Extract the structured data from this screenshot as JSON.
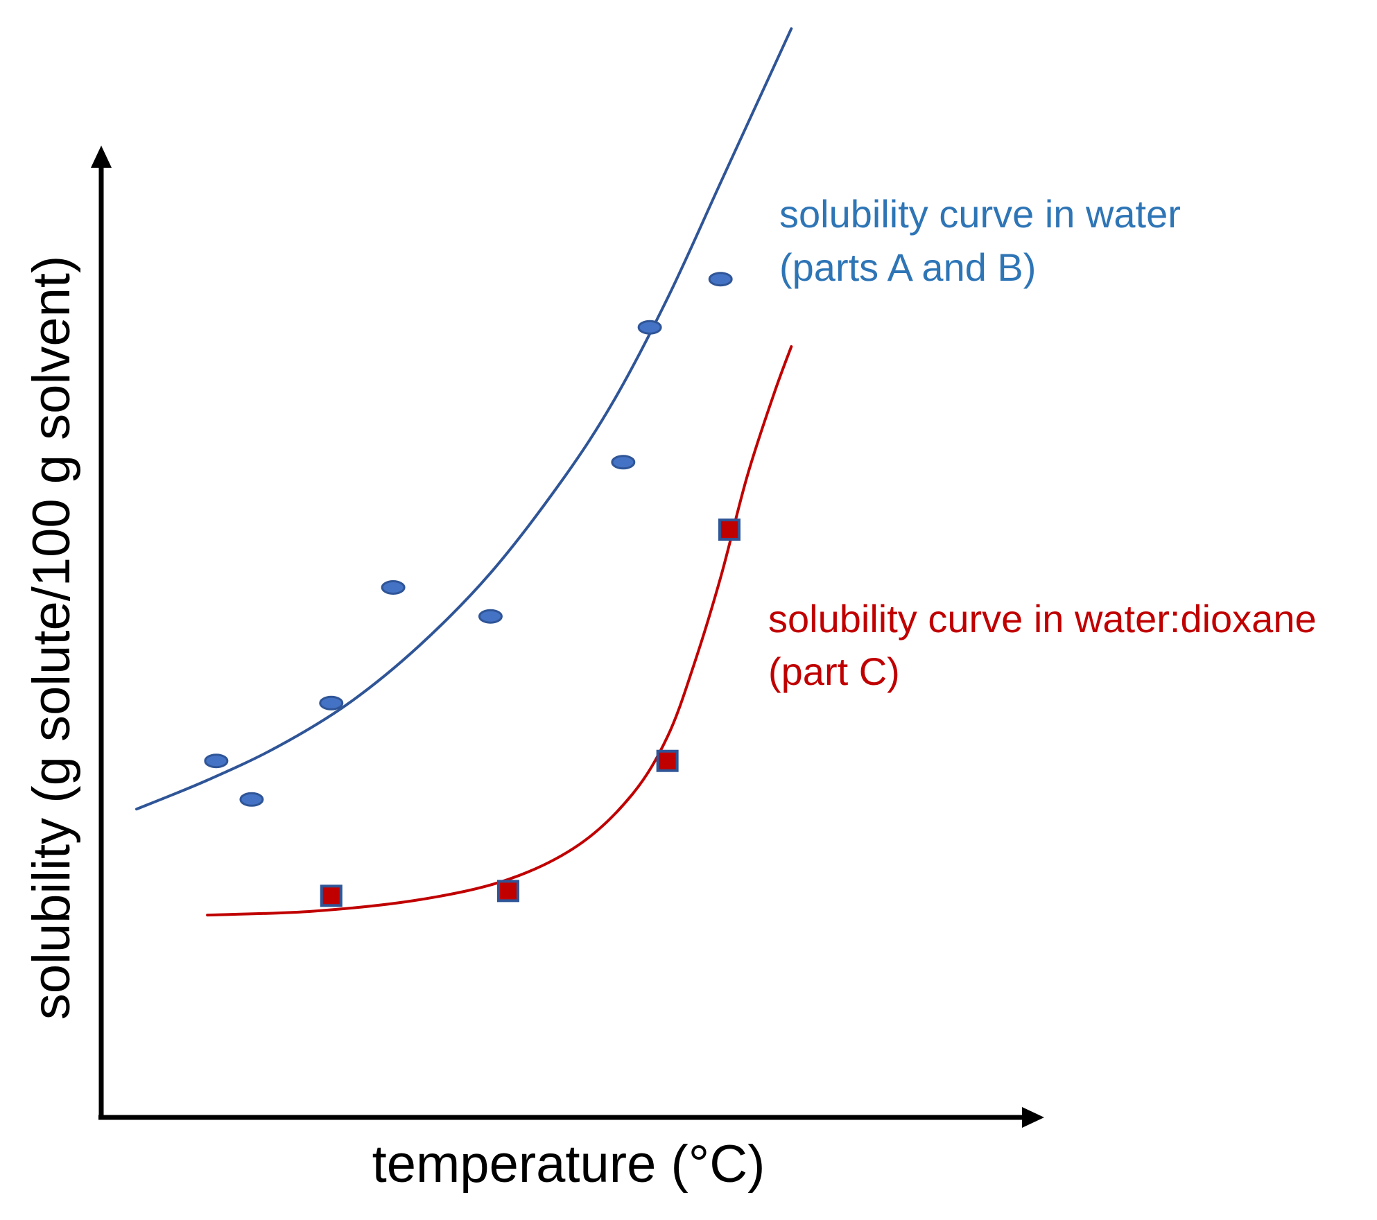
{
  "chart_data": {
    "type": "scatter",
    "title": "",
    "xlabel": "temperature (°C)",
    "ylabel": "solubility (g solute/100 g solvent)",
    "xlim": [
      0,
      100
    ],
    "ylim": [
      0,
      100
    ],
    "grid": false,
    "ticks": "none",
    "series": [
      {
        "name": "water",
        "label_lines": [
          "solubility curve in water",
          "(parts A and B)"
        ],
        "color": "#2F5597",
        "marker": "ellipse",
        "marker_fill": "#4472C4",
        "points": [
          {
            "x": 13,
            "y": 37
          },
          {
            "x": 17,
            "y": 33
          },
          {
            "x": 26,
            "y": 43
          },
          {
            "x": 33,
            "y": 55
          },
          {
            "x": 44,
            "y": 52
          },
          {
            "x": 59,
            "y": 68
          },
          {
            "x": 62,
            "y": 82
          },
          {
            "x": 70,
            "y": 87
          }
        ],
        "curve": [
          {
            "x": 4,
            "y": 32
          },
          {
            "x": 12,
            "y": 35
          },
          {
            "x": 20,
            "y": 38.5
          },
          {
            "x": 28,
            "y": 43
          },
          {
            "x": 36,
            "y": 49
          },
          {
            "x": 44,
            "y": 56.5
          },
          {
            "x": 52,
            "y": 66
          },
          {
            "x": 58,
            "y": 74.5
          },
          {
            "x": 64,
            "y": 85
          },
          {
            "x": 70,
            "y": 97
          },
          {
            "x": 76,
            "y": 109
          },
          {
            "x": 78,
            "y": 113
          }
        ]
      },
      {
        "name": "water:dioxane",
        "label_lines": [
          "solubility curve in water:dioxane",
          "(part C)"
        ],
        "color": "#C00000",
        "marker": "square",
        "marker_fill": "#C00000",
        "marker_edge": "#2F5597",
        "points": [
          {
            "x": 26,
            "y": 23
          },
          {
            "x": 46,
            "y": 23.5
          },
          {
            "x": 64,
            "y": 37
          },
          {
            "x": 71,
            "y": 61
          }
        ],
        "curve": [
          {
            "x": 12,
            "y": 21
          },
          {
            "x": 24,
            "y": 21.4
          },
          {
            "x": 36,
            "y": 22.6
          },
          {
            "x": 46,
            "y": 24.7
          },
          {
            "x": 54,
            "y": 28.3
          },
          {
            "x": 60,
            "y": 33.5
          },
          {
            "x": 64,
            "y": 39.5
          },
          {
            "x": 67,
            "y": 47
          },
          {
            "x": 70,
            "y": 56
          },
          {
            "x": 73,
            "y": 66.5
          },
          {
            "x": 76,
            "y": 75
          },
          {
            "x": 78,
            "y": 80
          }
        ]
      }
    ]
  }
}
